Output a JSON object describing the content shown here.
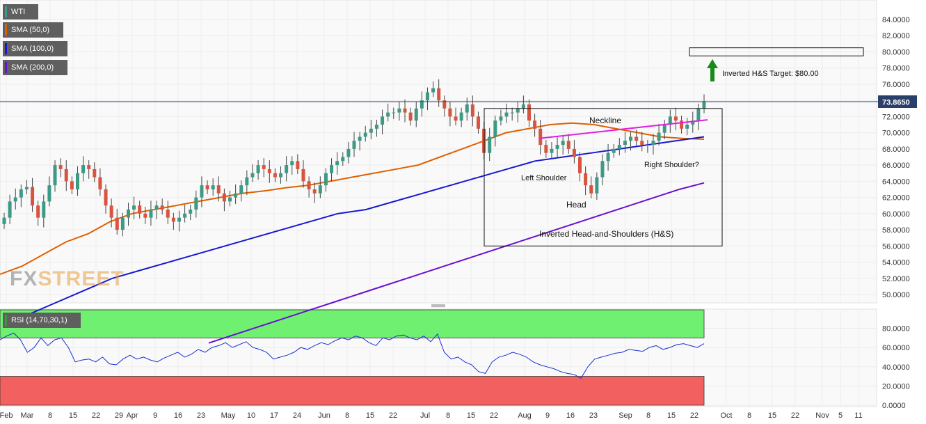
{
  "legend": [
    {
      "label": "WTI",
      "color": "#3a9a8a"
    },
    {
      "label": "SMA (50,0)",
      "color": "#e06000"
    },
    {
      "label": "SMA (100,0)",
      "color": "#1818d0"
    },
    {
      "label": "SMA (200,0)",
      "color": "#6a10d0"
    }
  ],
  "rsi_legend": {
    "label": "RSI (14,70,30,1)",
    "color": "#3a9a3a"
  },
  "watermark": {
    "fx": "FX",
    "street": "STREET"
  },
  "current_price": "73.8650",
  "annotations": {
    "neckline": "Neckline",
    "left_shoulder": "Left Shoulder",
    "head": "Head",
    "right_shoulder": "Right Shoulder?",
    "pattern": "Inverted Head-and-Shoulders (H&S)",
    "target": "Inverted H&S Target: $80.00"
  },
  "chart_data": [
    {
      "type": "candlestick",
      "title": "WTI",
      "ylim": [
        49,
        86
      ],
      "y_ticks": [
        "84.0000",
        "82.0000",
        "80.0000",
        "78.0000",
        "76.0000",
        "74.0000",
        "72.0000",
        "70.0000",
        "68.0000",
        "66.0000",
        "64.0000",
        "62.0000",
        "60.0000",
        "58.0000",
        "56.0000",
        "54.0000",
        "52.0000",
        "50.0000"
      ],
      "x_ticks": [
        "Feb",
        "Mar",
        "8",
        "15",
        "22",
        "29",
        "Apr",
        "9",
        "16",
        "23",
        "May",
        "10",
        "17",
        "24",
        "Jun",
        "8",
        "15",
        "22",
        "Jul",
        "8",
        "15",
        "22",
        "Aug",
        "9",
        "16",
        "23",
        "Sep",
        "8",
        "15",
        "22",
        "Oct",
        "8",
        "15",
        "22",
        "Nov",
        "5",
        "11"
      ],
      "series": [
        {
          "name": "SMA (50,0)",
          "color": "#e06000"
        },
        {
          "name": "SMA (100,0)",
          "color": "#1818d0"
        },
        {
          "name": "SMA (200,0)",
          "color": "#6a10d0"
        }
      ],
      "close_path": [
        59.5,
        61.5,
        62.0,
        63.0,
        63.3,
        61.0,
        59.5,
        61.5,
        63.5,
        66.0,
        65.5,
        64.0,
        63.0,
        65.0,
        66.0,
        65.5,
        64.5,
        63.0,
        61.0,
        59.5,
        58.0,
        59.5,
        60.5,
        61.0,
        60.0,
        59.5,
        60.5,
        61.0,
        60.5,
        59.5,
        59.0,
        59.5,
        60.0,
        60.5,
        62.0,
        63.5,
        63.0,
        63.5,
        62.5,
        61.5,
        62.0,
        62.5,
        63.5,
        64.5,
        65.0,
        66.0,
        65.5,
        65.0,
        64.5,
        65.0,
        66.0,
        66.5,
        65.5,
        64.0,
        63.0,
        62.5,
        63.5,
        65.0,
        66.0,
        66.5,
        67.0,
        68.0,
        69.0,
        69.5,
        70.0,
        70.5,
        71.0,
        72.0,
        72.5,
        72.5,
        73.0,
        72.5,
        71.5,
        73.0,
        74.0,
        75.0,
        75.5,
        74.0,
        73.0,
        72.0,
        71.5,
        72.5,
        73.5,
        72.0,
        70.5,
        67.5,
        69.5,
        71.5,
        72.0,
        72.5,
        72.5,
        73.0,
        73.5,
        71.5,
        70.5,
        68.5,
        67.5,
        68.0,
        68.5,
        69.0,
        68.0,
        67.0,
        65.0,
        63.5,
        62.5,
        64.5,
        66.5,
        67.5,
        68.0,
        68.5,
        69.0,
        69.5,
        69.0,
        68.5,
        68.5,
        69.0,
        70.0,
        71.0,
        72.0,
        71.5,
        70.5,
        71.0,
        71.5,
        73.0,
        73.9
      ],
      "sma50_path": [
        52.5,
        53.5,
        55,
        56.5,
        57.5,
        59,
        60,
        60.5,
        61,
        61.5,
        62,
        62.5,
        62.8,
        63.2,
        63.5,
        64,
        64.5,
        65,
        65.5,
        66,
        67,
        68,
        69,
        70,
        70.5,
        71,
        71.2,
        71,
        70.5,
        70,
        69.5,
        69.3,
        69.2
      ],
      "sma100_path": [
        47.5,
        49,
        50.5,
        52,
        53,
        54,
        55,
        56,
        57,
        58,
        59,
        60,
        60.5,
        61.5,
        62.5,
        63.5,
        64.5,
        65.5,
        66.5,
        67,
        67.5,
        68,
        68.5,
        69,
        69.5
      ],
      "sma200_path": [
        44,
        45,
        46,
        47,
        48,
        49,
        50,
        51,
        52,
        53,
        54,
        55,
        56,
        57,
        58,
        59,
        60,
        61,
        62,
        63,
        63.8
      ],
      "neckline": [
        [
          69.3
        ],
        [
          71.6
        ]
      ],
      "target_box": [
        79.5,
        80.5
      ],
      "pattern_box": [
        56,
        73
      ]
    },
    {
      "type": "line",
      "title": "RSI (14,70,30,1)",
      "ylim": [
        0,
        100
      ],
      "y_ticks": [
        "80.0000",
        "60.0000",
        "40.0000",
        "20.0000",
        "0.0000"
      ],
      "overbought": 70,
      "oversold": 30,
      "series": [
        {
          "name": "RSI (14,70,30,1)",
          "color": "#1830d0",
          "values": [
            68,
            72,
            75,
            68,
            55,
            60,
            70,
            62,
            68,
            70,
            60,
            45,
            47,
            48,
            45,
            50,
            43,
            42,
            48,
            52,
            48,
            50,
            47,
            45,
            49,
            52,
            55,
            50,
            53,
            58,
            55,
            60,
            62,
            65,
            60,
            63,
            66,
            60,
            58,
            55,
            48,
            50,
            52,
            55,
            60,
            58,
            62,
            65,
            63,
            67,
            70,
            68,
            72,
            70,
            65,
            62,
            70,
            68,
            72,
            73,
            70,
            68,
            72,
            66,
            74,
            55,
            48,
            50,
            45,
            42,
            35,
            33,
            45,
            50,
            52,
            55,
            53,
            50,
            45,
            42,
            40,
            38,
            35,
            33,
            32,
            28,
            40,
            48,
            50,
            52,
            54,
            55,
            58,
            57,
            56,
            60,
            62,
            58,
            60,
            63,
            64,
            62,
            60,
            64
          ]
        }
      ]
    }
  ]
}
